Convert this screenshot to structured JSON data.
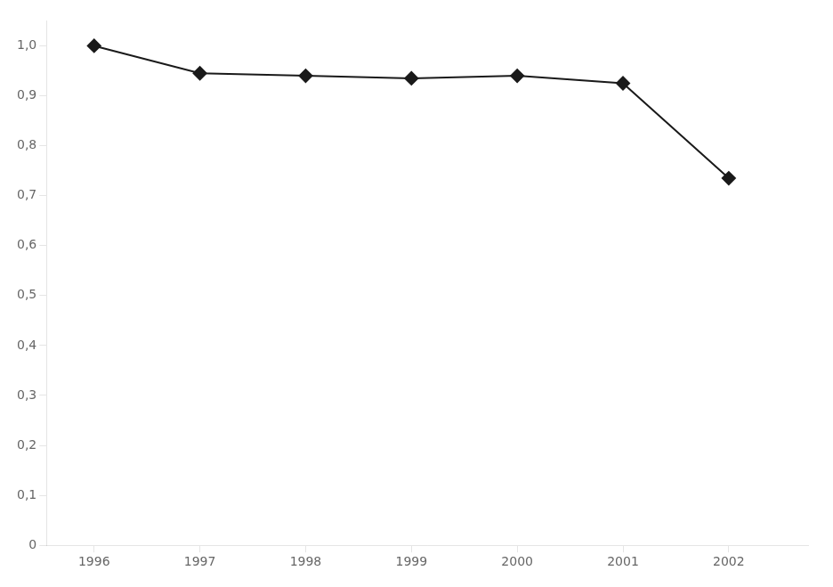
{
  "chart_data": {
    "type": "line",
    "x": [
      1996,
      1997,
      1998,
      1999,
      2000,
      2001,
      2002
    ],
    "values": [
      1.0,
      0.945,
      0.94,
      0.935,
      0.94,
      0.925,
      0.735
    ],
    "color": "#1a1a1a",
    "marker": "diamond",
    "xlim": [
      1995.55,
      2002.75
    ],
    "xticks": [
      1996,
      1997,
      1998,
      1999,
      2000,
      2001,
      2002
    ],
    "ylim": [
      0,
      1.05
    ],
    "yticks": [
      0,
      {
        "value": 0.1,
        "label": "0,1"
      },
      {
        "value": 0.2,
        "label": "0,2"
      },
      {
        "value": 0.3,
        "label": "0,3"
      },
      {
        "value": 0.4,
        "label": "0,4"
      },
      {
        "value": 0.5,
        "label": "0,5"
      },
      {
        "value": 0.6,
        "label": "0,6"
      },
      {
        "value": 0.7,
        "label": "0,7"
      },
      {
        "value": 0.8,
        "label": "0,8"
      },
      {
        "value": 0.9,
        "label": "0,9"
      },
      {
        "value": 1.0,
        "label": "1,0"
      }
    ],
    "grid": false
  }
}
